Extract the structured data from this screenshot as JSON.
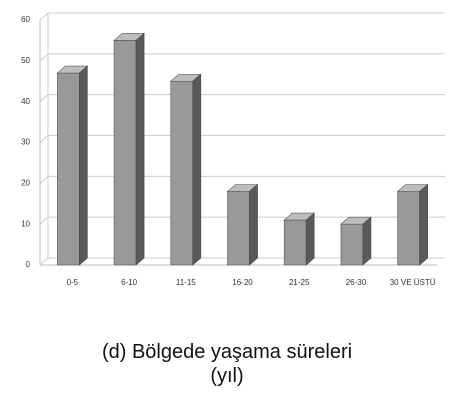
{
  "chart_data": {
    "type": "bar",
    "title": "(d) Bölgede yaşama süreleri (yıl)",
    "categories": [
      "0-5",
      "6-10",
      "11-15",
      "16-20",
      "21-25",
      "26-30",
      "30 VE ÜSTÜ"
    ],
    "values": [
      47,
      55,
      45,
      18,
      11,
      10,
      18
    ],
    "color": "#999999",
    "ylim": [
      0,
      60
    ],
    "yticks": [
      0,
      10,
      20,
      30,
      40,
      50,
      60
    ],
    "grid": true
  }
}
